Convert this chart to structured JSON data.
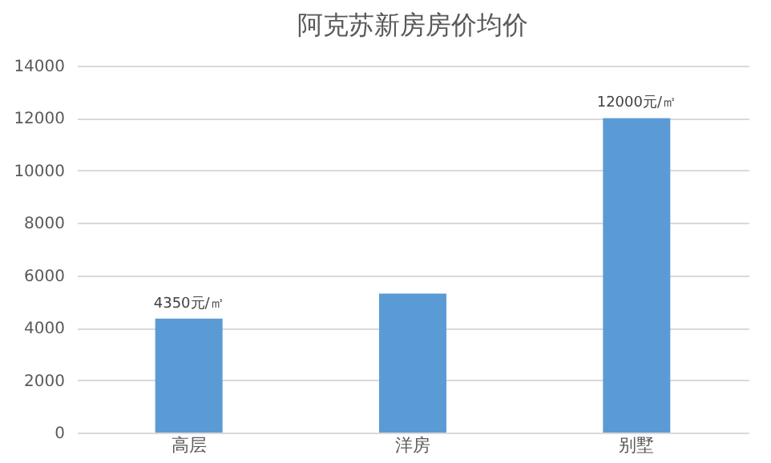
{
  "chart_data": {
    "type": "bar",
    "title": "阿克苏新房房价均价",
    "categories": [
      "高层",
      "洋房",
      "别墅"
    ],
    "values": [
      4350,
      5300,
      12000
    ],
    "value_labels": [
      "4350元/㎡",
      null,
      "12000元/㎡"
    ],
    "color": "#5b9bd5",
    "ylim": [
      0,
      14000
    ],
    "yticks": [
      0,
      2000,
      4000,
      6000,
      8000,
      10000,
      12000,
      14000
    ],
    "grid": "y"
  }
}
